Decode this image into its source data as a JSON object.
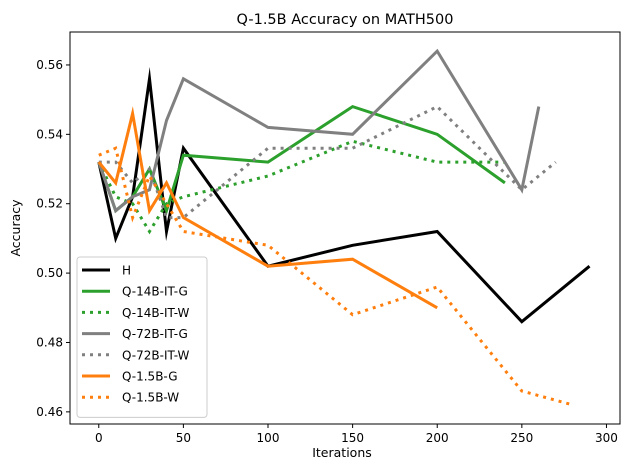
{
  "chart_data": {
    "type": "line",
    "title": "Q-1.5B Accuracy on MATH500",
    "xlabel": "Iterations",
    "ylabel": "Accuracy",
    "xlim": [
      -17,
      308
    ],
    "ylim": [
      0.4565,
      0.5695
    ],
    "xticks": [
      0,
      50,
      100,
      150,
      200,
      250,
      300
    ],
    "yticks": [
      0.46,
      0.48,
      0.5,
      0.52,
      0.54,
      0.56
    ],
    "grid": false,
    "legend_position": "lower-left",
    "series": [
      {
        "name": "H",
        "color": "#000000",
        "style": "solid",
        "x": [
          0,
          10,
          20,
          30,
          40,
          50,
          100,
          150,
          200,
          250,
          290
        ],
        "y": [
          0.532,
          0.51,
          0.522,
          0.556,
          0.512,
          0.536,
          0.502,
          0.508,
          0.512,
          0.486,
          0.502
        ]
      },
      {
        "name": "Q-14B-IT-G",
        "color": "#2ca02c",
        "style": "solid",
        "x": [
          0,
          10,
          20,
          30,
          40,
          50,
          100,
          150,
          200,
          240
        ],
        "y": [
          0.532,
          0.518,
          0.522,
          0.53,
          0.518,
          0.534,
          0.532,
          0.548,
          0.54,
          0.526
        ]
      },
      {
        "name": "Q-14B-IT-W",
        "color": "#2ca02c",
        "style": "dotted",
        "x": [
          0,
          10,
          20,
          30,
          40,
          50,
          100,
          150,
          200,
          240
        ],
        "y": [
          0.532,
          0.522,
          0.52,
          0.512,
          0.52,
          0.522,
          0.528,
          0.538,
          0.532,
          0.532
        ]
      },
      {
        "name": "Q-72B-IT-G",
        "color": "#808080",
        "style": "solid",
        "x": [
          0,
          10,
          20,
          30,
          40,
          50,
          100,
          150,
          200,
          250,
          260
        ],
        "y": [
          0.532,
          0.518,
          0.522,
          0.524,
          0.544,
          0.556,
          0.542,
          0.54,
          0.564,
          0.524,
          0.548
        ]
      },
      {
        "name": "Q-72B-IT-W",
        "color": "#808080",
        "style": "dotted",
        "x": [
          0,
          10,
          20,
          30,
          40,
          50,
          100,
          150,
          200,
          250,
          270
        ],
        "y": [
          0.532,
          0.532,
          0.526,
          0.53,
          0.516,
          0.516,
          0.536,
          0.536,
          0.548,
          0.524,
          0.532
        ]
      },
      {
        "name": "Q-1.5B-G",
        "color": "#ff7f0e",
        "style": "solid",
        "x": [
          0,
          10,
          20,
          30,
          40,
          50,
          100,
          150,
          200
        ],
        "y": [
          0.532,
          0.526,
          0.546,
          0.518,
          0.526,
          0.516,
          0.502,
          0.504,
          0.49
        ]
      },
      {
        "name": "Q-1.5B-W",
        "color": "#ff7f0e",
        "style": "dotted",
        "x": [
          0,
          10,
          20,
          30,
          40,
          50,
          100,
          150,
          200,
          250,
          280
        ],
        "y": [
          0.534,
          0.536,
          0.516,
          0.528,
          0.52,
          0.512,
          0.508,
          0.488,
          0.496,
          0.466,
          0.462
        ]
      }
    ]
  }
}
